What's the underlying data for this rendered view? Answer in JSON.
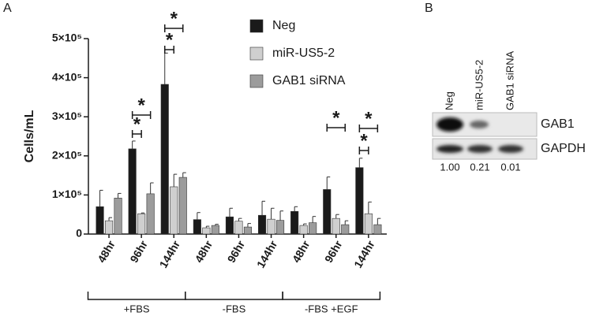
{
  "chart_data": {
    "type": "bar",
    "panel_label": "A",
    "y_label": "Cells/mL",
    "categories": [
      "48hr",
      "96hr",
      "144hr",
      "48hr",
      "96hr",
      "144hr",
      "48hr",
      "96hr",
      "144hr"
    ],
    "groups": [
      "+FBS",
      "-FBS",
      "-FBS +EGF"
    ],
    "series": [
      {
        "name": "Neg",
        "color": "#1a1a1a",
        "values": [
          70000,
          218000,
          383000,
          37000,
          44000,
          48000,
          58000,
          114000,
          170000
        ],
        "errors": [
          42000,
          20000,
          80000,
          18000,
          22000,
          36000,
          12000,
          32000,
          24000
        ]
      },
      {
        "name": "miR-US5-2",
        "color": "#cfcfcf",
        "values": [
          34000,
          52000,
          121000,
          16000,
          33000,
          38000,
          22000,
          40000,
          52000
        ],
        "errors": [
          8000,
          2000,
          32000,
          4000,
          7000,
          28000,
          4000,
          10000,
          30000
        ]
      },
      {
        "name": "GAB1 siRNA",
        "color": "#9c9c9c",
        "values": [
          92000,
          103000,
          145000,
          22000,
          18000,
          35000,
          29000,
          24000,
          24000
        ],
        "errors": [
          12000,
          28000,
          12000,
          3000,
          9000,
          24000,
          16000,
          10000,
          16000
        ]
      }
    ],
    "ylim": [
      0,
      500000
    ],
    "yticks": [
      0,
      {
        "value": 100000,
        "label": "1×10⁵"
      },
      {
        "value": 200000,
        "label": "2×10⁵"
      },
      {
        "value": 300000,
        "label": "3×10⁵"
      },
      {
        "value": 400000,
        "label": "4×10⁵"
      },
      {
        "value": 500000,
        "label": "5×10⁵"
      }
    ],
    "annotations": [
      {
        "text": "*"
      },
      {
        "text": "*"
      },
      {
        "text": "*"
      },
      {
        "text": "*"
      },
      {
        "text": "*"
      },
      {
        "text": "*"
      },
      {
        "text": "*"
      }
    ],
    "legend": "top-right",
    "grid": false
  },
  "panel_b": {
    "panel_label": "B",
    "lanes": [
      "Neg",
      "miR-US5-2",
      "GAB1 siRNA"
    ],
    "bands": [
      "GAB1",
      "GAPDH"
    ],
    "quantification": [
      "1.00",
      "0.21",
      "0.01"
    ]
  }
}
